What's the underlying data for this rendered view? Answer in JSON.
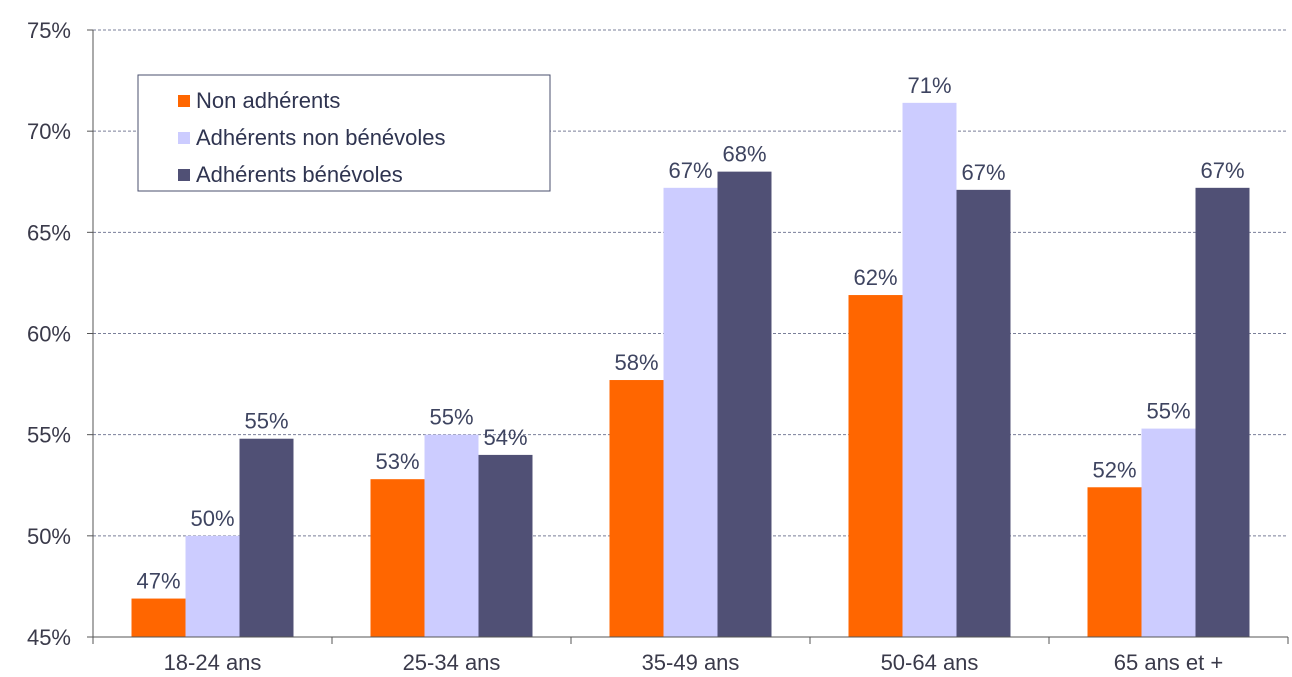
{
  "chart_data": {
    "type": "bar",
    "categories": [
      "18-24 ans",
      "25-34 ans",
      "35-49 ans",
      "50-64 ans",
      "65 ans et +"
    ],
    "series": [
      {
        "name": "Non adhérents",
        "color": "#ff6600",
        "values": [
          46.9,
          52.8,
          57.7,
          61.9,
          52.4
        ],
        "labels": [
          "47%",
          "53%",
          "58%",
          "62%",
          "52%"
        ]
      },
      {
        "name": "Adhérents non bénévoles",
        "color": "#ccccff",
        "values": [
          50.0,
          55.0,
          67.2,
          71.4,
          55.3
        ],
        "labels": [
          "50%",
          "55%",
          "67%",
          "71%",
          "55%"
        ]
      },
      {
        "name": "Adhérents bénévoles",
        "color": "#505075",
        "values": [
          54.8,
          54.0,
          68.0,
          67.1,
          67.2
        ],
        "labels": [
          "55%",
          "54%",
          "68%",
          "67%",
          "67%"
        ]
      }
    ],
    "y_ticks": [
      "45%",
      "50%",
      "55%",
      "60%",
      "65%",
      "70%",
      "75%"
    ],
    "ylim": [
      45,
      75
    ],
    "y_step": 5,
    "grid": "horizontal dashed",
    "legend_position": "top-left",
    "title": "",
    "xlabel": "",
    "ylabel": ""
  }
}
